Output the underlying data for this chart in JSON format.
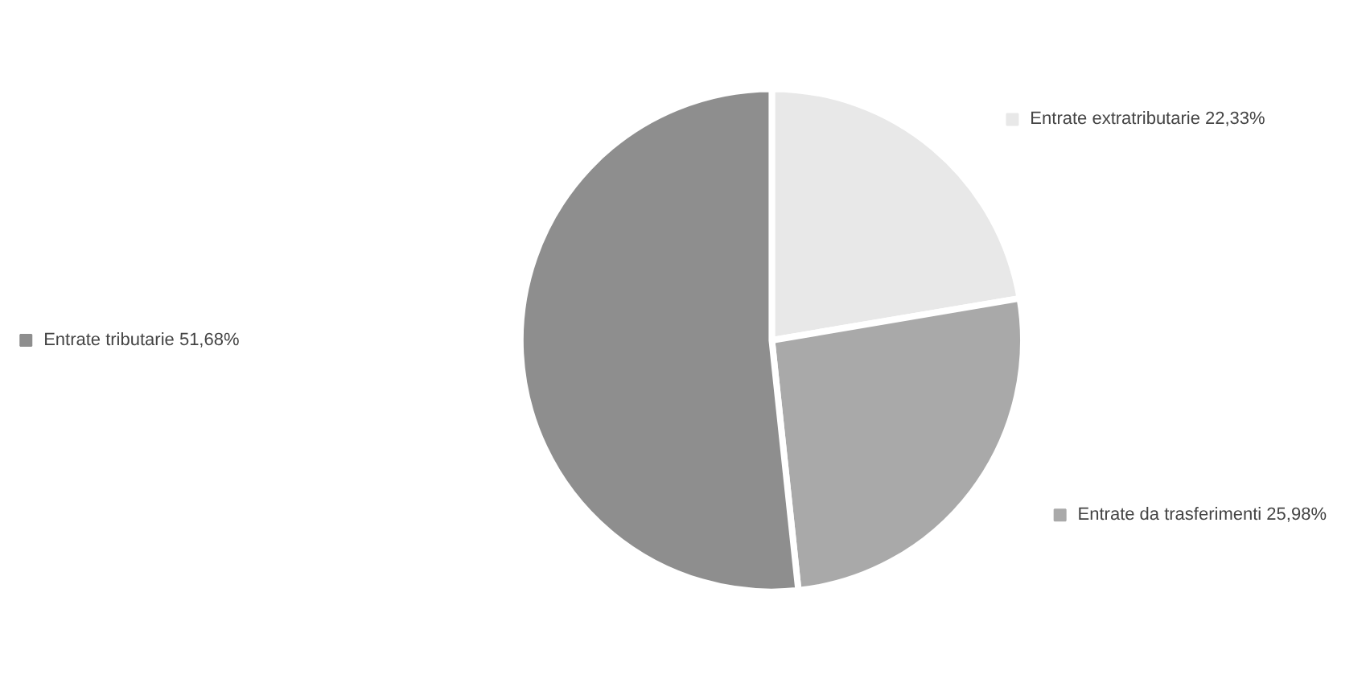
{
  "chart_data": {
    "type": "pie",
    "categories": [
      "Entrate extratributarie",
      "Entrate da trasferimenti",
      "Entrate tributarie"
    ],
    "values": [
      22.33,
      25.98,
      51.68
    ],
    "value_labels": [
      "22,33%",
      "25,98%",
      "51,68%"
    ],
    "colors": [
      "#e8e8e8",
      "#a9a9a9",
      "#8e8e8e"
    ],
    "legend": "top left"
  }
}
